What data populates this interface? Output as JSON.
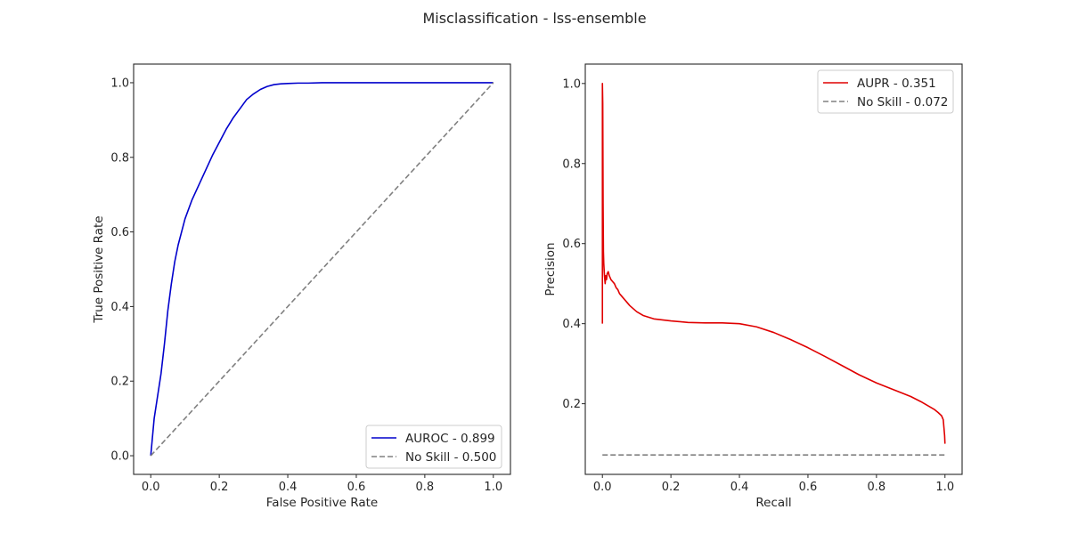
{
  "figure": {
    "title": "Misclassification - lss-ensemble"
  },
  "chart_data": [
    {
      "type": "line",
      "xlabel": "False Positive Rate",
      "ylabel": "True Positive Rate",
      "xlim": [
        -0.05,
        1.05
      ],
      "ylim": [
        -0.05,
        1.05
      ],
      "xticks": [
        0.0,
        0.2,
        0.4,
        0.6,
        0.8,
        1.0
      ],
      "yticks": [
        0.0,
        0.2,
        0.4,
        0.6,
        0.8,
        1.0
      ],
      "tick_format": 1,
      "grid": false,
      "legend_position": "lower-right",
      "series": [
        {
          "name": "AUROC - 0.899",
          "color": "#0000cc",
          "dash": "solid",
          "x": [
            0.0,
            0.005,
            0.01,
            0.02,
            0.03,
            0.04,
            0.05,
            0.06,
            0.07,
            0.08,
            0.09,
            0.1,
            0.12,
            0.14,
            0.16,
            0.18,
            0.2,
            0.22,
            0.24,
            0.26,
            0.28,
            0.3,
            0.32,
            0.34,
            0.36,
            0.38,
            0.4,
            0.43,
            0.46,
            0.5,
            0.6,
            0.7,
            0.8,
            0.9,
            1.0
          ],
          "y": [
            0.0,
            0.05,
            0.1,
            0.16,
            0.22,
            0.3,
            0.39,
            0.46,
            0.52,
            0.565,
            0.6,
            0.635,
            0.685,
            0.725,
            0.765,
            0.805,
            0.84,
            0.875,
            0.905,
            0.93,
            0.955,
            0.97,
            0.982,
            0.99,
            0.995,
            0.997,
            0.998,
            0.999,
            0.999,
            1.0,
            1.0,
            1.0,
            1.0,
            1.0,
            1.0
          ]
        },
        {
          "name": "No Skill - 0.500",
          "color": "#808080",
          "dash": "dashed",
          "x": [
            0.0,
            1.0
          ],
          "y": [
            0.0,
            1.0
          ]
        }
      ]
    },
    {
      "type": "line",
      "xlabel": "Recall",
      "ylabel": "Precision",
      "xlim": [
        -0.05,
        1.05
      ],
      "ylim": [
        0.0235,
        1.0485
      ],
      "xticks": [
        0.0,
        0.2,
        0.4,
        0.6,
        0.8,
        1.0
      ],
      "yticks": [
        0.2,
        0.4,
        0.6,
        0.8,
        1.0
      ],
      "tick_format": 1,
      "grid": false,
      "legend_position": "upper-right",
      "series": [
        {
          "name": "AUPR - 0.351",
          "color": "#e00000",
          "dash": "solid",
          "x": [
            0.0,
            0.0,
            0.001,
            0.002,
            0.003,
            0.004,
            0.006,
            0.008,
            0.01,
            0.012,
            0.014,
            0.017,
            0.02,
            0.025,
            0.03,
            0.035,
            0.04,
            0.045,
            0.05,
            0.06,
            0.08,
            0.1,
            0.12,
            0.15,
            0.2,
            0.25,
            0.3,
            0.35,
            0.4,
            0.45,
            0.5,
            0.55,
            0.6,
            0.65,
            0.7,
            0.75,
            0.8,
            0.85,
            0.9,
            0.93,
            0.95,
            0.97,
            0.98,
            0.99,
            0.995,
            0.997,
            0.999,
            1.0
          ],
          "y": [
            0.4,
            1.0,
            0.95,
            0.7,
            0.58,
            0.55,
            0.52,
            0.5,
            0.52,
            0.51,
            0.525,
            0.53,
            0.52,
            0.51,
            0.505,
            0.5,
            0.49,
            0.485,
            0.475,
            0.465,
            0.445,
            0.43,
            0.42,
            0.412,
            0.407,
            0.403,
            0.402,
            0.402,
            0.4,
            0.392,
            0.378,
            0.36,
            0.34,
            0.318,
            0.295,
            0.272,
            0.252,
            0.235,
            0.218,
            0.205,
            0.195,
            0.185,
            0.178,
            0.17,
            0.16,
            0.14,
            0.12,
            0.1
          ]
        },
        {
          "name": "No Skill - 0.072",
          "color": "#808080",
          "dash": "dashed",
          "x": [
            0.0,
            1.0
          ],
          "y": [
            0.072,
            0.072
          ]
        }
      ]
    }
  ]
}
